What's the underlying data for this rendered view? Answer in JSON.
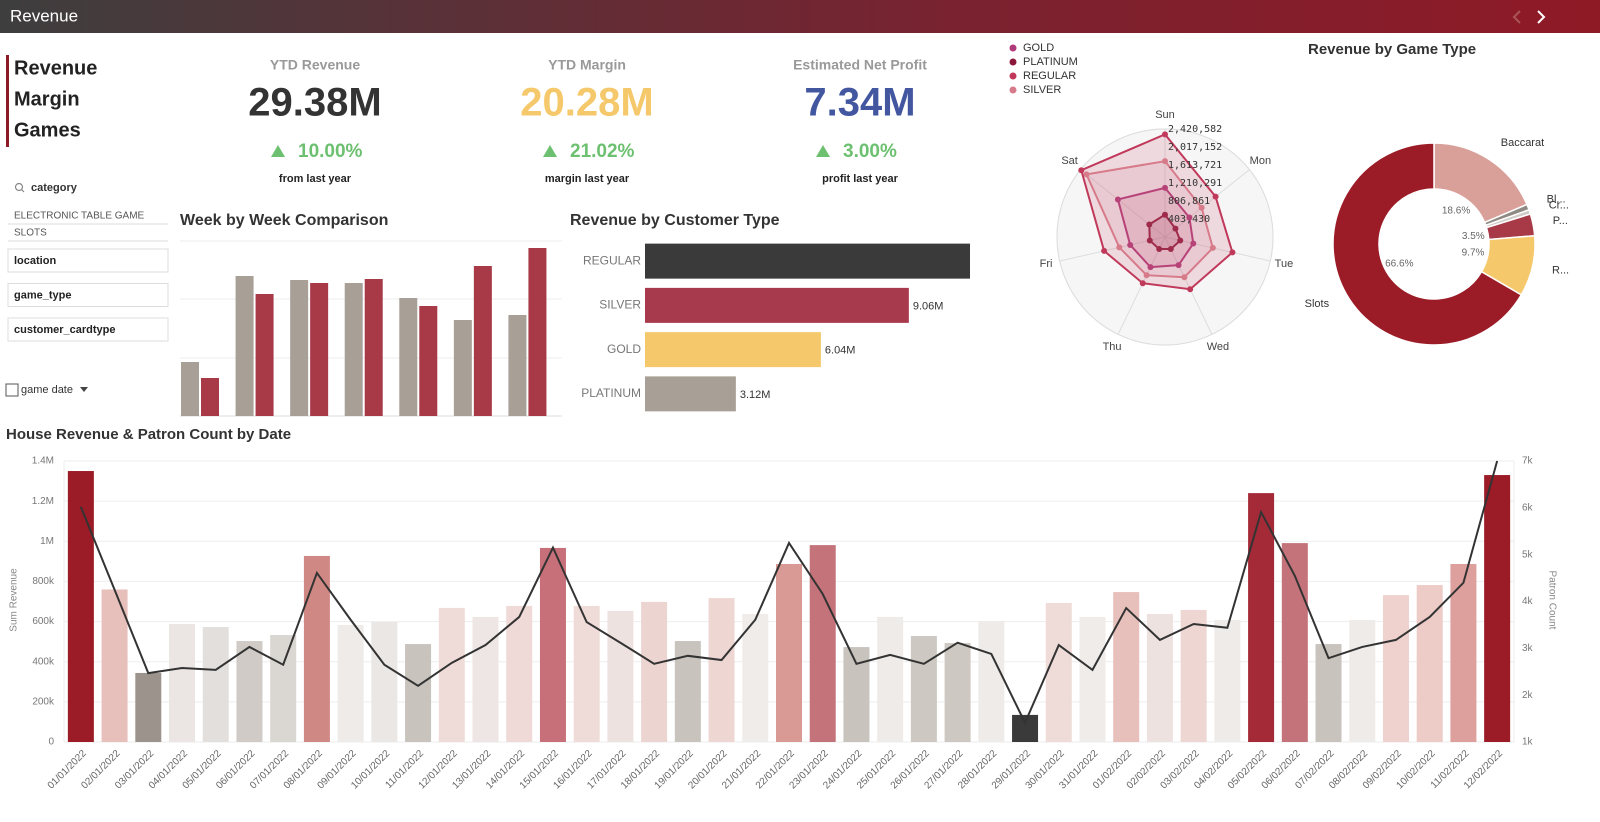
{
  "header": {
    "title": "Revenue"
  },
  "nav": [
    "Revenue",
    "Margin",
    "Games"
  ],
  "filters": {
    "search": "category",
    "items": [
      "ELECTRONIC TABLE GAME",
      "SLOTS"
    ],
    "dropdowns": [
      "location",
      "game_type",
      "customer_cardtype"
    ],
    "date": "game date"
  },
  "kpis": [
    {
      "title": "YTD Revenue",
      "value": "29.38M",
      "change": "10.00%",
      "note": "from last year",
      "color": "#333333"
    },
    {
      "title": "YTD Margin",
      "value": "20.28M",
      "change": "21.02%",
      "note": "margin last year",
      "color": "#f5c96b"
    },
    {
      "title": "Estimated Net Profit",
      "value": "7.34M",
      "change": "3.00%",
      "note": "profit last year",
      "color": "#4257a0"
    }
  ],
  "chart_data": [
    {
      "type": "bar",
      "title": "Week by Week Comparison",
      "categories": [
        null,
        null,
        null,
        null,
        null,
        null,
        null
      ],
      "ylim": [
        0,
        176
      ],
      "series": [
        {
          "color": "#a8a096",
          "values": [
            54,
            140,
            136,
            133,
            118,
            96,
            101
          ]
        },
        {
          "color": "#a83a48",
          "values": [
            38,
            122,
            133,
            137,
            110,
            150,
            168
          ]
        }
      ]
    },
    {
      "type": "bar",
      "orientation": "horizontal",
      "title": "Revenue by Customer Type",
      "categories": [
        "REGULAR",
        "SILVER",
        "GOLD",
        "PLATINUM"
      ],
      "values": [
        11160000,
        9060000,
        6040000,
        3120000
      ],
      "value_labels": [
        null,
        "9.06M",
        "6.04M",
        "3.12M"
      ],
      "colors": [
        "#3a3a3a",
        "#a83a4e",
        "#f5c96b",
        "#a8a096"
      ]
    },
    {
      "type": "radar",
      "categories": [
        "Sun",
        "Mon",
        "Tue",
        "Wed",
        "Thu",
        "Fri",
        "Sat"
      ],
      "ylim": [
        0,
        2420582
      ],
      "yticks": [
        {
          "value": 403430,
          "label": "403,430"
        },
        {
          "value": 806861,
          "label": "806,861"
        },
        {
          "value": 1210291,
          "label": "1,210,291"
        },
        {
          "value": 1613721,
          "label": "1,613,721"
        },
        {
          "value": 2017152,
          "label": "2,017,152"
        },
        {
          "value": 2420582,
          "label": "2,420,582"
        }
      ],
      "series": [
        {
          "name": "GOLD",
          "color": "#b03a7a",
          "values": [
            1100000,
            700000,
            650000,
            700000,
            750000,
            800000,
            1350000
          ]
        },
        {
          "name": "PLATINUM",
          "color": "#8b1a3a",
          "values": [
            500000,
            300000,
            350000,
            300000,
            300000,
            350000,
            450000
          ]
        },
        {
          "name": "REGULAR",
          "color": "#c0395a",
          "values": [
            2300000,
            1450000,
            1550000,
            1300000,
            1150000,
            1400000,
            2400000
          ]
        },
        {
          "name": "SILVER",
          "color": "#d77a8a",
          "values": [
            1700000,
            1050000,
            1100000,
            1000000,
            950000,
            1050000,
            2250000
          ]
        }
      ]
    },
    {
      "type": "donut",
      "title": "Revenue by Game Type",
      "categories": [
        "Baccarat",
        "Bl...",
        "Cr...",
        "P...",
        "R...",
        "Slots"
      ],
      "values": [
        18.6,
        0.9,
        0.7,
        3.5,
        9.7,
        66.6
      ],
      "value_labels": [
        "18.6%",
        null,
        null,
        "3.5%",
        "9.7%",
        "66.6%"
      ],
      "colors": [
        "#d9a09a",
        "#8f8a84",
        "#d0ccc8",
        "#a83a48",
        "#f5c96b",
        "#9b1b27"
      ]
    },
    {
      "type": "combo",
      "title": "House Revenue & Patron Count by Date",
      "ylabel": "Sum Revenue",
      "y2label": "Patron Count",
      "categories": [
        "01/01/2022",
        "02/01/2022",
        "03/01/2022",
        "04/01/2022",
        "05/01/2022",
        "06/01/2022",
        "07/01/2022",
        "08/01/2022",
        "09/01/2022",
        "10/01/2022",
        "11/01/2022",
        "12/01/2022",
        "13/01/2022",
        "14/01/2022",
        "15/01/2022",
        "16/01/2022",
        "17/01/2022",
        "18/01/2022",
        "19/01/2022",
        "20/01/2022",
        "21/01/2022",
        "22/01/2022",
        "23/01/2022",
        "24/01/2022",
        "25/01/2022",
        "26/01/2022",
        "27/01/2022",
        "28/01/2022",
        "29/01/2022",
        "30/01/2022",
        "31/01/2022",
        "01/02/2022",
        "02/02/2022",
        "03/02/2022",
        "04/02/2022",
        "05/02/2022",
        "06/02/2022",
        "07/02/2022",
        "08/02/2022",
        "09/02/2022",
        "10/02/2022",
        "11/02/2022",
        "12/02/2022"
      ],
      "ylim": [
        0,
        1400000
      ],
      "yticks": [
        0,
        {
          "value": 200000,
          "label": "200k"
        },
        {
          "value": 400000,
          "label": "400k"
        },
        {
          "value": 600000,
          "label": "600k"
        },
        {
          "value": 800000,
          "label": "800k"
        },
        {
          "value": 1000000,
          "label": "1M"
        },
        {
          "value": 1200000,
          "label": "1.2M"
        },
        {
          "value": 1400000,
          "label": "1.4M"
        }
      ],
      "y2lim": [
        1000,
        7000
      ],
      "y2ticks": [
        {
          "value": 1000,
          "label": "1k"
        },
        {
          "value": 2000,
          "label": "2k"
        },
        {
          "value": 3000,
          "label": "3k"
        },
        {
          "value": 4000,
          "label": "4k"
        },
        {
          "value": 5000,
          "label": "5k"
        },
        {
          "value": 6000,
          "label": "6k"
        },
        {
          "value": 7000,
          "label": "7k"
        }
      ],
      "grid": true,
      "series": [
        {
          "kind": "bar",
          "values": [
            1350000,
            760000,
            344000,
            588000,
            573000,
            503000,
            533000,
            927000,
            583000,
            598000,
            488000,
            668000,
            623000,
            678000,
            967000,
            678000,
            653000,
            698000,
            503000,
            717000,
            638000,
            887000,
            981000,
            473000,
            623000,
            528000,
            493000,
            603000,
            135000,
            693000,
            623000,
            747000,
            638000,
            658000,
            608000,
            1240000,
            991000,
            488000,
            608000,
            732000,
            782000,
            887000,
            1330000
          ],
          "colors": [
            "#9b1b27",
            "#e8c0bb",
            "#9c948c",
            "#ebe5e3",
            "#e3dfdc",
            "#d0cbc6",
            "#dad6d2",
            "#d08884",
            "#efebe9",
            "#ebe7e5",
            "#c8c3bd",
            "#efdcd9",
            "#ede6e4",
            "#efdad7",
            "#c7707a",
            "#efdcd9",
            "#eee2e0",
            "#ecd4d1",
            "#c8c3bd",
            "#eed6d2",
            "#f0ecea",
            "#d99a96",
            "#c4737a",
            "#c8c3bd",
            "#efebe9",
            "#cdc8c2",
            "#cdc8c2",
            "#efebe9",
            "#3a3a3a",
            "#efdcd9",
            "#f0ecea",
            "#e8c0bb",
            "#eee2e0",
            "#eed6d2",
            "#efebe9",
            "#a52a38",
            "#c4737a",
            "#c8c3bd",
            "#efebe9",
            "#efd2ce",
            "#edcbc7",
            "#dea09c",
            "#9b1b27"
          ]
        },
        {
          "kind": "line",
          "axis": "y2",
          "color": "#333333",
          "values": [
            6020,
            4250,
            2470,
            2580,
            2540,
            3030,
            2650,
            4610,
            3610,
            2650,
            2200,
            2690,
            3070,
            3670,
            5150,
            3560,
            3120,
            2670,
            2840,
            2750,
            3610,
            5250,
            4160,
            2670,
            2860,
            2670,
            3120,
            2880,
            1410,
            3070,
            2540,
            3860,
            3180,
            3520,
            3440,
            5910,
            4550,
            2790,
            3030,
            3180,
            3670,
            4400,
            7000
          ]
        }
      ]
    }
  ]
}
